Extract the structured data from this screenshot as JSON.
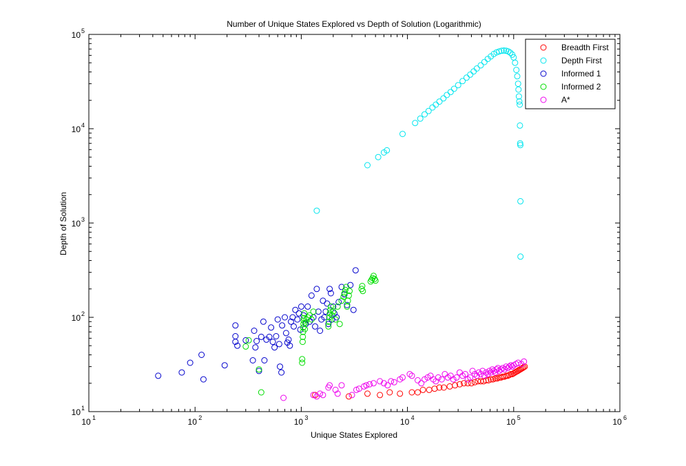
{
  "chart_data": {
    "type": "scatter",
    "title": "Number of Unique States Explored vs Depth of Solution (Logarithmic)",
    "xlabel": "Unique States Explored",
    "ylabel": "Depth of Solution",
    "xscale": "log",
    "yscale": "log",
    "xlim": [
      10,
      1000000
    ],
    "ylim": [
      10,
      100000
    ],
    "grid": false,
    "legend_position": "top-right",
    "x_ticks": [
      {
        "base": "10",
        "exp": "1"
      },
      {
        "base": "10",
        "exp": "2"
      },
      {
        "base": "10",
        "exp": "3"
      },
      {
        "base": "10",
        "exp": "4"
      },
      {
        "base": "10",
        "exp": "5"
      },
      {
        "base": "10",
        "exp": "6"
      }
    ],
    "y_ticks": [
      {
        "base": "10",
        "exp": "1"
      },
      {
        "base": "10",
        "exp": "2"
      },
      {
        "base": "10",
        "exp": "3"
      },
      {
        "base": "10",
        "exp": "4"
      },
      {
        "base": "10",
        "exp": "5"
      }
    ],
    "series": [
      {
        "name": "Breadth First",
        "color": "#ff0000",
        "points": [
          [
            1350,
            15
          ],
          [
            2800,
            14.5
          ],
          [
            4200,
            15.5
          ],
          [
            5500,
            15
          ],
          [
            6800,
            16
          ],
          [
            8500,
            15.5
          ],
          [
            11000,
            16
          ],
          [
            12500,
            16
          ],
          [
            14000,
            17
          ],
          [
            16000,
            17
          ],
          [
            18000,
            17.5
          ],
          [
            20000,
            18
          ],
          [
            22000,
            18
          ],
          [
            25000,
            18.5
          ],
          [
            28000,
            19
          ],
          [
            31000,
            19.5
          ],
          [
            34000,
            20
          ],
          [
            37000,
            20
          ],
          [
            40000,
            20
          ],
          [
            43000,
            20.5
          ],
          [
            46000,
            21
          ],
          [
            49000,
            21
          ],
          [
            52000,
            21
          ],
          [
            55000,
            21.5
          ],
          [
            58000,
            21.5
          ],
          [
            61000,
            22
          ],
          [
            64000,
            22
          ],
          [
            67000,
            22.5
          ],
          [
            70000,
            22.5
          ],
          [
            73000,
            23
          ],
          [
            76000,
            23
          ],
          [
            79000,
            23.5
          ],
          [
            82000,
            23.5
          ],
          [
            85000,
            24
          ],
          [
            88000,
            24
          ],
          [
            91000,
            24.5
          ],
          [
            94000,
            25
          ],
          [
            97000,
            25
          ],
          [
            100000,
            25.5
          ],
          [
            103000,
            26
          ],
          [
            106000,
            26.5
          ],
          [
            109000,
            27
          ],
          [
            112000,
            27.5
          ],
          [
            115000,
            28
          ],
          [
            118000,
            28.5
          ],
          [
            121000,
            29
          ],
          [
            124000,
            29.5
          ],
          [
            127000,
            30
          ]
        ]
      },
      {
        "name": "Depth First",
        "color": "#00e5ee",
        "points": [
          [
            1400,
            1350
          ],
          [
            4200,
            4100
          ],
          [
            5300,
            5000
          ],
          [
            6000,
            5600
          ],
          [
            6400,
            5900
          ],
          [
            9000,
            8800
          ],
          [
            11800,
            11500
          ],
          [
            13200,
            12800
          ],
          [
            14500,
            14200
          ],
          [
            15800,
            15400
          ],
          [
            17200,
            16800
          ],
          [
            18500,
            18000
          ],
          [
            20000,
            19400
          ],
          [
            21800,
            21000
          ],
          [
            23500,
            22800
          ],
          [
            25500,
            24500
          ],
          [
            27500,
            26500
          ],
          [
            30000,
            29000
          ],
          [
            33000,
            32000
          ],
          [
            36000,
            34800
          ],
          [
            39000,
            37500
          ],
          [
            42000,
            40500
          ],
          [
            45000,
            43500
          ],
          [
            49000,
            47000
          ],
          [
            53000,
            51000
          ],
          [
            57000,
            55000
          ],
          [
            61000,
            58500
          ],
          [
            65000,
            62000
          ],
          [
            69000,
            64500
          ],
          [
            73000,
            66000
          ],
          [
            77000,
            67000
          ],
          [
            81000,
            67500
          ],
          [
            85000,
            67000
          ],
          [
            89000,
            66000
          ],
          [
            93000,
            64000
          ],
          [
            97000,
            61000
          ],
          [
            100000,
            57000
          ],
          [
            103000,
            50000
          ],
          [
            106000,
            42000
          ],
          [
            108000,
            36000
          ],
          [
            110000,
            30000
          ],
          [
            111000,
            26000
          ],
          [
            112000,
            22000
          ],
          [
            113000,
            19500
          ],
          [
            114000,
            18000
          ],
          [
            114500,
            10800
          ],
          [
            115000,
            7000
          ],
          [
            115500,
            6700
          ],
          [
            115800,
            1700
          ],
          [
            116000,
            440
          ]
        ]
      },
      {
        "name": "Informed 1",
        "color": "#0000cc",
        "points": [
          [
            45,
            24
          ],
          [
            75,
            26
          ],
          [
            90,
            33
          ],
          [
            115,
            40
          ],
          [
            120,
            22
          ],
          [
            190,
            31
          ],
          [
            240,
            82
          ],
          [
            240,
            63
          ],
          [
            250,
            50
          ],
          [
            240,
            55
          ],
          [
            300,
            57
          ],
          [
            350,
            35
          ],
          [
            360,
            72
          ],
          [
            370,
            48
          ],
          [
            380,
            56
          ],
          [
            400,
            27
          ],
          [
            420,
            62
          ],
          [
            440,
            90
          ],
          [
            450,
            35
          ],
          [
            470,
            58
          ],
          [
            500,
            62
          ],
          [
            520,
            78
          ],
          [
            540,
            55
          ],
          [
            560,
            48
          ],
          [
            580,
            63
          ],
          [
            600,
            95
          ],
          [
            620,
            52
          ],
          [
            630,
            30
          ],
          [
            650,
            26
          ],
          [
            660,
            82
          ],
          [
            700,
            100
          ],
          [
            720,
            68
          ],
          [
            740,
            54
          ],
          [
            760,
            58
          ],
          [
            780,
            50
          ],
          [
            800,
            90
          ],
          [
            830,
            100
          ],
          [
            850,
            80
          ],
          [
            880,
            120
          ],
          [
            920,
            95
          ],
          [
            950,
            110
          ],
          [
            980,
            74
          ],
          [
            1000,
            130
          ],
          [
            1050,
            105
          ],
          [
            1100,
            85
          ],
          [
            1150,
            130
          ],
          [
            1200,
            90
          ],
          [
            1250,
            170
          ],
          [
            1300,
            100
          ],
          [
            1350,
            80
          ],
          [
            1400,
            200
          ],
          [
            1450,
            115
          ],
          [
            1500,
            72
          ],
          [
            1550,
            95
          ],
          [
            1600,
            150
          ],
          [
            1650,
            100
          ],
          [
            1700,
            115
          ],
          [
            1750,
            140
          ],
          [
            1800,
            85
          ],
          [
            1850,
            200
          ],
          [
            1900,
            180
          ],
          [
            1950,
            95
          ],
          [
            2000,
            130
          ],
          [
            2050,
            110
          ],
          [
            2150,
            100
          ],
          [
            2250,
            145
          ],
          [
            2400,
            210
          ],
          [
            2550,
            175
          ],
          [
            2700,
            135
          ],
          [
            2900,
            220
          ],
          [
            3100,
            120
          ],
          [
            3250,
            315
          ]
        ]
      },
      {
        "name": "Informed 2",
        "color": "#00dd00",
        "points": [
          [
            300,
            49
          ],
          [
            320,
            57
          ],
          [
            400,
            28
          ],
          [
            420,
            16
          ],
          [
            1020,
            33
          ],
          [
            1020,
            36
          ],
          [
            1030,
            55
          ],
          [
            1035,
            62
          ],
          [
            1040,
            70
          ],
          [
            1045,
            78
          ],
          [
            1050,
            85
          ],
          [
            1055,
            92
          ],
          [
            1060,
            98
          ],
          [
            1070,
            110
          ],
          [
            1080,
            75
          ],
          [
            1100,
            88
          ],
          [
            1120,
            95
          ],
          [
            1150,
            100
          ],
          [
            1200,
            105
          ],
          [
            1250,
            95
          ],
          [
            1300,
            115
          ],
          [
            1800,
            80
          ],
          [
            1820,
            90
          ],
          [
            1840,
            100
          ],
          [
            1860,
            110
          ],
          [
            1880,
            120
          ],
          [
            1900,
            130
          ],
          [
            1950,
            105
          ],
          [
            2000,
            115
          ],
          [
            2100,
            95
          ],
          [
            2200,
            130
          ],
          [
            2300,
            85
          ],
          [
            2400,
            150
          ],
          [
            2500,
            165
          ],
          [
            2550,
            180
          ],
          [
            2600,
            195
          ],
          [
            2650,
            210
          ],
          [
            2700,
            130
          ],
          [
            2750,
            150
          ],
          [
            2800,
            170
          ],
          [
            2850,
            190
          ],
          [
            3700,
            200
          ],
          [
            3750,
            215
          ],
          [
            3800,
            190
          ],
          [
            4500,
            240
          ],
          [
            4600,
            250
          ],
          [
            4700,
            260
          ],
          [
            4800,
            275
          ],
          [
            4900,
            255
          ],
          [
            5000,
            245
          ]
        ]
      },
      {
        "name": "A*",
        "color": "#ee00ee",
        "points": [
          [
            680,
            14
          ],
          [
            1300,
            15
          ],
          [
            1400,
            14.5
          ],
          [
            1500,
            15.5
          ],
          [
            1600,
            15
          ],
          [
            1800,
            18
          ],
          [
            1850,
            19
          ],
          [
            2100,
            17
          ],
          [
            2200,
            15.5
          ],
          [
            2400,
            19
          ],
          [
            3000,
            15
          ],
          [
            3300,
            17
          ],
          [
            3500,
            17.5
          ],
          [
            3900,
            18.5
          ],
          [
            4100,
            19
          ],
          [
            4400,
            19.5
          ],
          [
            4800,
            20
          ],
          [
            5500,
            21
          ],
          [
            6000,
            20
          ],
          [
            6500,
            19
          ],
          [
            7000,
            21
          ],
          [
            7500,
            20.5
          ],
          [
            8500,
            22
          ],
          [
            9000,
            23
          ],
          [
            10500,
            25
          ],
          [
            11000,
            24
          ],
          [
            12500,
            21.5
          ],
          [
            13500,
            20
          ],
          [
            14500,
            22
          ],
          [
            15500,
            23
          ],
          [
            16500,
            24
          ],
          [
            17500,
            22
          ],
          [
            18500,
            21
          ],
          [
            19500,
            23
          ],
          [
            21000,
            22
          ],
          [
            22500,
            25
          ],
          [
            24000,
            23
          ],
          [
            25500,
            24
          ],
          [
            27000,
            22
          ],
          [
            29000,
            23
          ],
          [
            31000,
            26
          ],
          [
            33000,
            24
          ],
          [
            35000,
            25
          ],
          [
            37000,
            22
          ],
          [
            39000,
            23
          ],
          [
            41000,
            27
          ],
          [
            43000,
            25
          ],
          [
            45000,
            24
          ],
          [
            47000,
            26
          ],
          [
            49000,
            25
          ],
          [
            51000,
            27
          ],
          [
            53000,
            24
          ],
          [
            55000,
            26
          ],
          [
            57000,
            25
          ],
          [
            59000,
            27
          ],
          [
            61000,
            26
          ],
          [
            63000,
            28
          ],
          [
            65000,
            27
          ],
          [
            67000,
            26
          ],
          [
            69000,
            28
          ],
          [
            71000,
            29
          ],
          [
            73000,
            27
          ],
          [
            76000,
            28
          ],
          [
            79000,
            29
          ],
          [
            82000,
            28
          ],
          [
            85000,
            30
          ],
          [
            88000,
            29
          ],
          [
            91000,
            30
          ],
          [
            94000,
            31
          ],
          [
            97000,
            30
          ],
          [
            100000,
            31
          ],
          [
            105000,
            32
          ],
          [
            110000,
            33
          ],
          [
            118000,
            32
          ],
          [
            125000,
            34
          ]
        ]
      }
    ]
  }
}
